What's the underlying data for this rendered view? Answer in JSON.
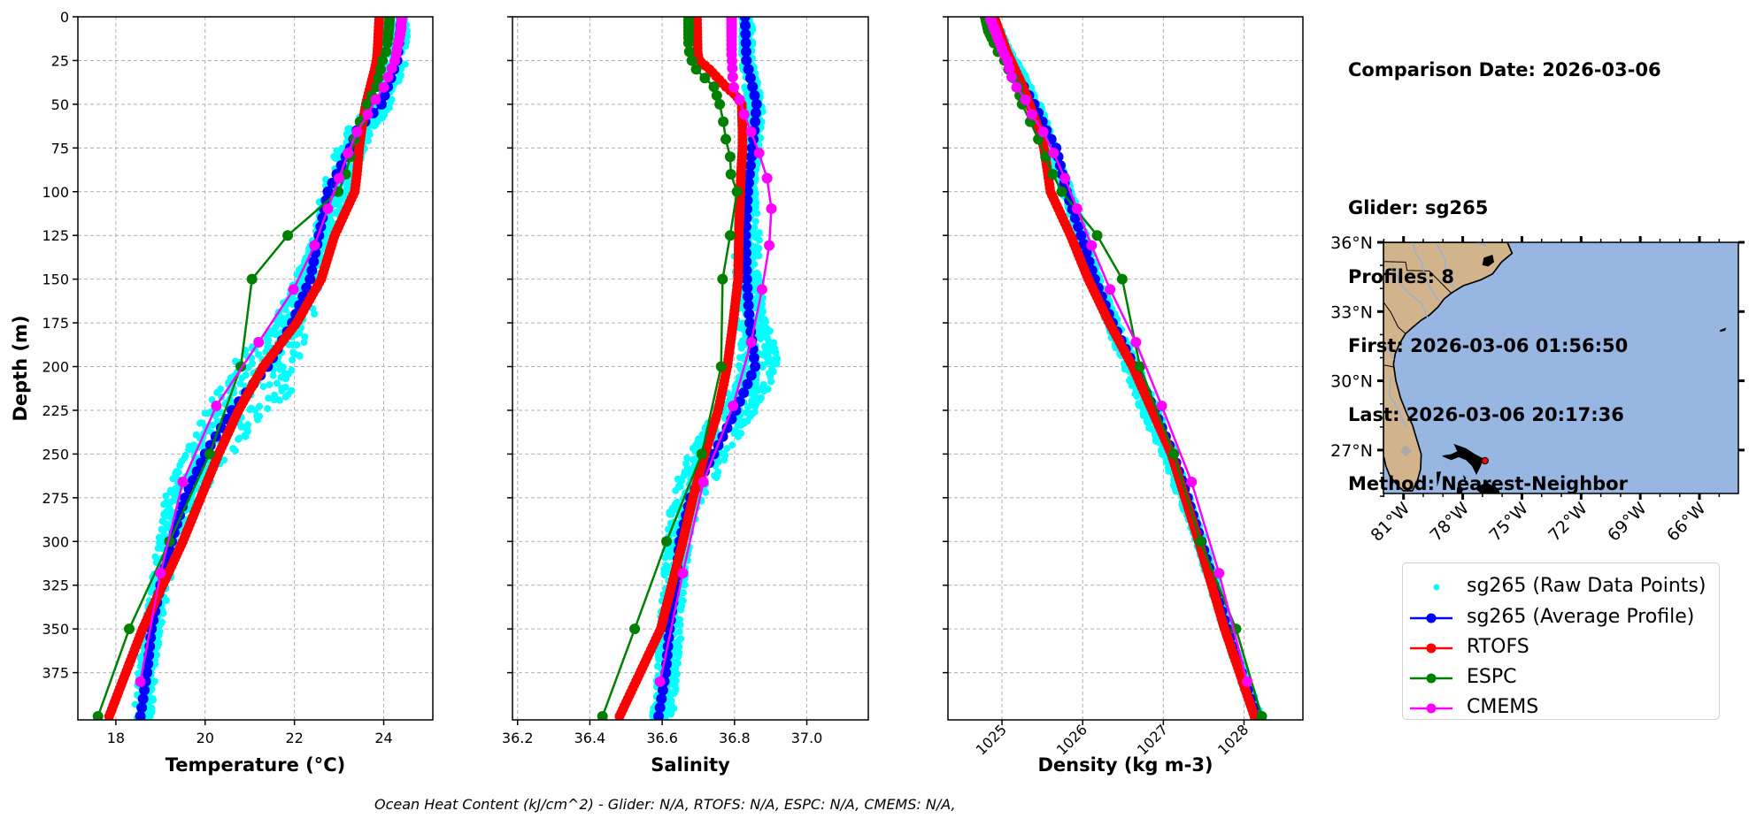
{
  "info": {
    "comparison": "Comparison Date: 2026-03-06",
    "glider": "Glider: sg265",
    "profiles": "Profiles: 8",
    "first": "First: 2026-03-06 01:56:50",
    "last": "Last: 2026-03-06 20:17:36",
    "method": "Method: Nearest-Neighbor"
  },
  "caption": "Ocean Heat Content (kJ/cm^2) - Glider: N/A,  RTOFS: N/A,  ESPC: N/A,  CMEMS: N/A,",
  "legend": [
    {
      "label": "sg265 (Raw Data Points)",
      "color": "#00ffff",
      "kind": "dot"
    },
    {
      "label": "sg265 (Average Profile)",
      "color": "#0000ff",
      "kind": "line"
    },
    {
      "label": "RTOFS",
      "color": "#ff0000",
      "kind": "line"
    },
    {
      "label": "ESPC",
      "color": "#008000",
      "kind": "line"
    },
    {
      "label": "CMEMS",
      "color": "#ff00ff",
      "kind": "line"
    }
  ],
  "map": {
    "lat_ticks": [
      "36°N",
      "33°N",
      "30°N",
      "27°N"
    ],
    "lon_ticks": [
      "81°W",
      "78°W",
      "75°W",
      "72°W",
      "69°W",
      "66°W"
    ],
    "extent": {
      "lon": [
        -82.0,
        -64.0
      ],
      "lat": [
        25.1,
        36.0
      ]
    },
    "glider_position": {
      "lon": -76.85,
      "lat": 26.54
    },
    "land_color": "#d2b48c",
    "ocean_color": "#97b6e1",
    "marker_color": "#ff0000"
  },
  "chart_data": [
    {
      "type": "line",
      "key": "temperature",
      "xlabel": "Temperature (°C)",
      "ylabel": "Depth (m)",
      "xlim": [
        17.15,
        25.1
      ],
      "xticks": [
        18,
        20,
        22,
        24
      ],
      "xtick_labels": [
        "18",
        "20",
        "22",
        "24"
      ],
      "ylim": [
        402,
        0
      ],
      "yticks": [
        0,
        25,
        50,
        75,
        100,
        125,
        150,
        175,
        200,
        225,
        250,
        275,
        300,
        325,
        350,
        375
      ],
      "ytick_labels": [
        "0",
        "25",
        "50",
        "75",
        "100",
        "125",
        "150",
        "175",
        "200",
        "225",
        "250",
        "275",
        "300",
        "325",
        "350",
        "375"
      ],
      "grid": true,
      "series": [
        {
          "name": "sg265 (Raw Data Points)",
          "style": "scatter",
          "envelope_depth": [
            0,
            25,
            50,
            60,
            75,
            100,
            125,
            150,
            175,
            200,
            215,
            225,
            250,
            275,
            300,
            325,
            350,
            400
          ],
          "envelope_min": [
            24.0,
            23.9,
            23.6,
            23.3,
            22.9,
            22.6,
            22.4,
            22.0,
            21.5,
            20.5,
            20.2,
            20.0,
            19.5,
            19.1,
            18.9,
            18.8,
            18.6,
            18.4
          ],
          "envelope_max": [
            24.6,
            24.5,
            24.2,
            23.9,
            23.6,
            23.2,
            22.9,
            22.6,
            22.4,
            22.1,
            22.0,
            21.4,
            20.6,
            19.9,
            19.4,
            19.2,
            19.0,
            18.8
          ]
        },
        {
          "name": "sg265 (Average Profile)",
          "depth": [
            0,
            25,
            50,
            65,
            75,
            100,
            125,
            150,
            175,
            200,
            225,
            250,
            275,
            300,
            325,
            350,
            375,
            400
          ],
          "values": [
            24.4,
            24.3,
            23.95,
            23.4,
            23.25,
            22.75,
            22.55,
            22.35,
            21.95,
            21.4,
            20.6,
            20.0,
            19.55,
            19.25,
            19.0,
            18.8,
            18.7,
            18.55
          ]
        },
        {
          "name": "RTOFS",
          "depth": [
            0,
            20,
            25,
            30,
            40,
            45,
            50,
            65,
            75,
            90,
            100,
            125,
            150,
            175,
            200,
            225,
            250,
            275,
            300,
            350,
            400
          ],
          "values": [
            23.9,
            23.86,
            23.84,
            23.8,
            23.7,
            23.65,
            23.6,
            23.5,
            23.45,
            23.4,
            23.35,
            22.9,
            22.6,
            22.05,
            21.3,
            20.75,
            20.3,
            19.9,
            19.5,
            18.6,
            17.85
          ]
        },
        {
          "name": "ESPC",
          "depth": [
            0,
            2,
            4,
            6,
            8,
            10,
            12,
            15,
            20,
            25,
            30,
            35,
            40,
            45,
            50,
            60,
            70,
            80,
            90,
            100,
            125,
            150,
            200,
            250,
            300,
            350,
            400
          ],
          "values": [
            24.13,
            24.13,
            24.12,
            24.12,
            24.11,
            24.1,
            24.1,
            24.08,
            24.05,
            23.97,
            23.93,
            23.88,
            23.84,
            23.73,
            23.63,
            23.47,
            23.35,
            23.25,
            23.15,
            22.98,
            21.85,
            21.05,
            20.8,
            20.1,
            19.2,
            18.3,
            17.6
          ]
        },
        {
          "name": "CMEMS",
          "depth": [
            0.5,
            1.5,
            2.6,
            3.8,
            5.1,
            6.4,
            7.9,
            9.6,
            11.4,
            13.5,
            15.8,
            18.5,
            21.6,
            25.2,
            29.4,
            34.4,
            40.3,
            47.4,
            55.8,
            65.8,
            77.9,
            92.3,
            109.7,
            130.7,
            155.9,
            186.1,
            222.5,
            266.0,
            318.1,
            380.2
          ],
          "values": [
            24.4,
            24.4,
            24.4,
            24.39,
            24.39,
            24.39,
            24.38,
            24.37,
            24.36,
            24.34,
            24.32,
            24.3,
            24.28,
            24.25,
            24.18,
            24.1,
            24.0,
            23.82,
            23.64,
            23.4,
            23.2,
            23.0,
            22.75,
            22.45,
            21.98,
            21.2,
            20.25,
            19.5,
            19.0,
            18.55
          ]
        }
      ]
    },
    {
      "type": "line",
      "key": "salinity",
      "xlabel": "Salinity",
      "xlim": [
        36.186,
        37.17
      ],
      "xticks": [
        36.2,
        36.4,
        36.6,
        36.8,
        37.0
      ],
      "xtick_labels": [
        "36.2",
        "36.4",
        "36.6",
        "36.8",
        "37.0"
      ],
      "ylim": [
        402,
        0
      ],
      "grid": true,
      "series": [
        {
          "name": "sg265 (Raw Data Points)",
          "style": "scatter",
          "envelope_depth": [
            0,
            25,
            50,
            75,
            100,
            125,
            150,
            175,
            190,
            205,
            225,
            240,
            260,
            280,
            300,
            330,
            360,
            400
          ],
          "envelope_min": [
            36.82,
            36.82,
            36.83,
            36.83,
            36.82,
            36.8,
            36.8,
            36.8,
            36.82,
            36.8,
            36.74,
            36.7,
            36.64,
            36.62,
            36.61,
            36.6,
            36.59,
            36.57
          ],
          "envelope_max": [
            36.85,
            36.85,
            36.88,
            36.87,
            36.86,
            36.87,
            36.87,
            36.89,
            36.92,
            36.92,
            36.86,
            36.81,
            36.76,
            36.7,
            36.68,
            36.66,
            36.65,
            36.63
          ]
        },
        {
          "name": "sg265 (Average Profile)",
          "depth": [
            0,
            25,
            50,
            65,
            75,
            100,
            125,
            150,
            175,
            200,
            225,
            250,
            275,
            300,
            325,
            350,
            375,
            400
          ],
          "values": [
            36.829,
            36.833,
            36.861,
            36.855,
            36.849,
            36.837,
            36.831,
            36.834,
            36.842,
            36.857,
            36.804,
            36.743,
            36.678,
            36.648,
            36.637,
            36.62,
            36.61,
            36.59
          ]
        },
        {
          "name": "RTOFS",
          "depth": [
            0,
            20,
            25,
            30,
            40,
            45,
            50,
            65,
            75,
            90,
            100,
            125,
            150,
            175,
            200,
            225,
            250,
            275,
            300,
            350,
            400
          ],
          "values": [
            36.696,
            36.698,
            36.702,
            36.731,
            36.776,
            36.804,
            36.82,
            36.822,
            36.822,
            36.818,
            36.816,
            36.812,
            36.81,
            36.796,
            36.78,
            36.755,
            36.718,
            36.685,
            36.657,
            36.596,
            36.482
          ]
        },
        {
          "name": "ESPC",
          "depth": [
            0,
            2,
            4,
            6,
            8,
            10,
            12,
            15,
            20,
            25,
            30,
            35,
            40,
            45,
            50,
            60,
            70,
            80,
            90,
            100,
            125,
            150,
            200,
            250,
            300,
            350,
            400
          ],
          "values": [
            36.673,
            36.673,
            36.673,
            36.673,
            36.673,
            36.673,
            36.673,
            36.673,
            36.675,
            36.682,
            36.694,
            36.718,
            36.743,
            36.751,
            36.759,
            36.769,
            36.776,
            36.788,
            36.79,
            36.807,
            36.788,
            36.767,
            36.763,
            36.709,
            36.612,
            36.524,
            36.435
          ]
        },
        {
          "name": "CMEMS",
          "depth": [
            0.5,
            1.5,
            2.6,
            3.8,
            5.1,
            6.4,
            7.9,
            9.6,
            11.4,
            13.5,
            15.8,
            18.5,
            21.6,
            25.2,
            29.4,
            34.4,
            40.3,
            47.4,
            55.8,
            65.8,
            77.9,
            92.3,
            109.7,
            130.7,
            155.9,
            186.1,
            222.5,
            266.0,
            318.1,
            380.2
          ],
          "values": [
            36.792,
            36.792,
            36.792,
            36.792,
            36.792,
            36.792,
            36.792,
            36.792,
            36.792,
            36.792,
            36.792,
            36.792,
            36.792,
            36.793,
            36.794,
            36.795,
            36.798,
            36.814,
            36.827,
            36.846,
            36.868,
            36.89,
            36.902,
            36.896,
            36.876,
            36.846,
            36.796,
            36.714,
            36.657,
            36.594
          ]
        }
      ]
    },
    {
      "type": "line",
      "key": "density",
      "xlabel": "Density (kg m-3)",
      "xlim": [
        1024.33,
        1028.73
      ],
      "xticks": [
        1025,
        1026,
        1027,
        1028
      ],
      "xtick_labels": [
        "1025",
        "1026",
        "1027",
        "1028"
      ],
      "ylim": [
        402,
        0
      ],
      "grid": true,
      "series": [
        {
          "name": "sg265 (Raw Data Points)",
          "style": "scatter",
          "envelope_depth": [
            0,
            50,
            100,
            150,
            200,
            225,
            250,
            300,
            350,
            400
          ],
          "envelope_min": [
            1024.82,
            1025.35,
            1025.74,
            1026.08,
            1026.5,
            1026.72,
            1026.98,
            1027.4,
            1027.74,
            1028.1
          ],
          "envelope_max": [
            1024.92,
            1025.48,
            1025.88,
            1026.22,
            1026.7,
            1026.95,
            1027.16,
            1027.52,
            1027.84,
            1028.22
          ]
        },
        {
          "name": "sg265 (Average Profile)",
          "depth": [
            0,
            25,
            50,
            65,
            75,
            100,
            125,
            150,
            175,
            200,
            225,
            250,
            275,
            300,
            325,
            350,
            375,
            400
          ],
          "values": [
            1024.85,
            1025.07,
            1025.4,
            1025.55,
            1025.67,
            1025.8,
            1025.98,
            1026.15,
            1026.37,
            1026.64,
            1026.89,
            1027.12,
            1027.3,
            1027.47,
            1027.63,
            1027.79,
            1027.97,
            1028.16
          ]
        },
        {
          "name": "RTOFS",
          "depth": [
            0,
            20,
            25,
            30,
            40,
            45,
            50,
            65,
            75,
            90,
            100,
            125,
            150,
            175,
            200,
            225,
            250,
            275,
            300,
            350,
            400
          ],
          "values": [
            1024.9,
            1025.06,
            1025.11,
            1025.16,
            1025.26,
            1025.3,
            1025.34,
            1025.46,
            1025.52,
            1025.57,
            1025.6,
            1025.85,
            1026.07,
            1026.33,
            1026.62,
            1026.86,
            1027.1,
            1027.27,
            1027.44,
            1027.76,
            1028.13
          ]
        },
        {
          "name": "ESPC",
          "depth": [
            0,
            2,
            4,
            6,
            8,
            10,
            12,
            15,
            20,
            25,
            30,
            35,
            40,
            45,
            50,
            60,
            70,
            80,
            90,
            100,
            125,
            150,
            200,
            250,
            300,
            350,
            400
          ],
          "values": [
            1024.79,
            1024.8,
            1024.81,
            1024.82,
            1024.83,
            1024.85,
            1024.87,
            1024.9,
            1024.95,
            1025.03,
            1025.08,
            1025.14,
            1025.2,
            1025.22,
            1025.25,
            1025.35,
            1025.45,
            1025.54,
            1025.63,
            1025.74,
            1026.18,
            1026.49,
            1026.71,
            1027.13,
            1027.46,
            1027.9,
            1028.22
          ]
        },
        {
          "name": "CMEMS",
          "depth": [
            0.5,
            1.5,
            2.6,
            3.8,
            5.1,
            6.4,
            7.9,
            9.6,
            11.4,
            13.5,
            15.8,
            18.5,
            21.6,
            25.2,
            29.4,
            34.4,
            40.3,
            47.4,
            55.8,
            65.8,
            77.9,
            92.3,
            109.7,
            130.7,
            155.9,
            186.1,
            222.5,
            266.0,
            318.1,
            380.2
          ],
          "values": [
            1024.85,
            1024.86,
            1024.87,
            1024.88,
            1024.89,
            1024.9,
            1024.91,
            1024.93,
            1024.94,
            1024.96,
            1024.98,
            1025.0,
            1025.03,
            1025.07,
            1025.09,
            1025.12,
            1025.18,
            1025.29,
            1025.37,
            1025.51,
            1025.64,
            1025.78,
            1025.93,
            1026.11,
            1026.34,
            1026.66,
            1026.98,
            1027.35,
            1027.69,
            1028.04
          ]
        }
      ]
    }
  ]
}
